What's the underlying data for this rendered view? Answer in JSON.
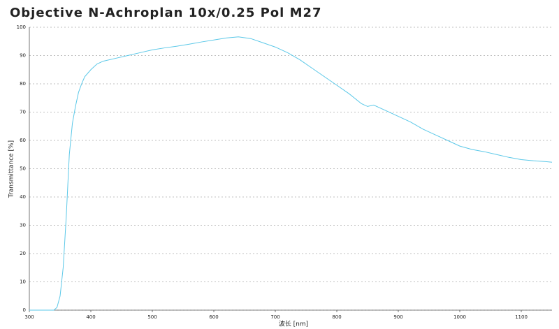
{
  "chart_data": {
    "type": "line",
    "title": "Objective N-Achroplan 10x/0.25 Pol M27",
    "x_label": "波长 [nm]",
    "y_label": "Transmittance [%]",
    "x": [
      300,
      340,
      345,
      350,
      355,
      360,
      365,
      370,
      375,
      380,
      385,
      390,
      400,
      410,
      420,
      440,
      460,
      480,
      500,
      520,
      540,
      560,
      580,
      600,
      620,
      640,
      660,
      680,
      700,
      720,
      740,
      760,
      780,
      800,
      820,
      840,
      850,
      860,
      870,
      880,
      900,
      920,
      940,
      960,
      980,
      1000,
      1020,
      1040,
      1060,
      1080,
      1100,
      1120,
      1140,
      1150
    ],
    "series": [
      {
        "color": "#5bc8e8",
        "values": [
          0,
          0,
          1,
          5,
          15,
          33,
          55,
          66,
          72,
          77,
          80,
          82.5,
          85,
          87,
          88,
          89,
          90,
          91,
          92,
          92.7,
          93.3,
          94,
          94.8,
          95.5,
          96.2,
          96.6,
          96,
          94.5,
          93,
          91,
          88.5,
          85.5,
          82.5,
          79.5,
          76.5,
          73,
          72,
          72.5,
          71.5,
          70.5,
          68.5,
          66.5,
          64,
          62,
          60,
          58,
          56.8,
          56,
          55,
          54,
          53.2,
          52.8,
          52.5,
          52.3
        ]
      }
    ],
    "xlim": [
      300,
      1150
    ],
    "ylim": [
      0,
      100
    ],
    "xticks": [
      300,
      400,
      500,
      600,
      700,
      800,
      900,
      1000,
      1100
    ],
    "yticks": [
      0,
      10,
      20,
      30,
      40,
      50,
      60,
      70,
      80,
      90,
      100
    ],
    "grid": true
  }
}
